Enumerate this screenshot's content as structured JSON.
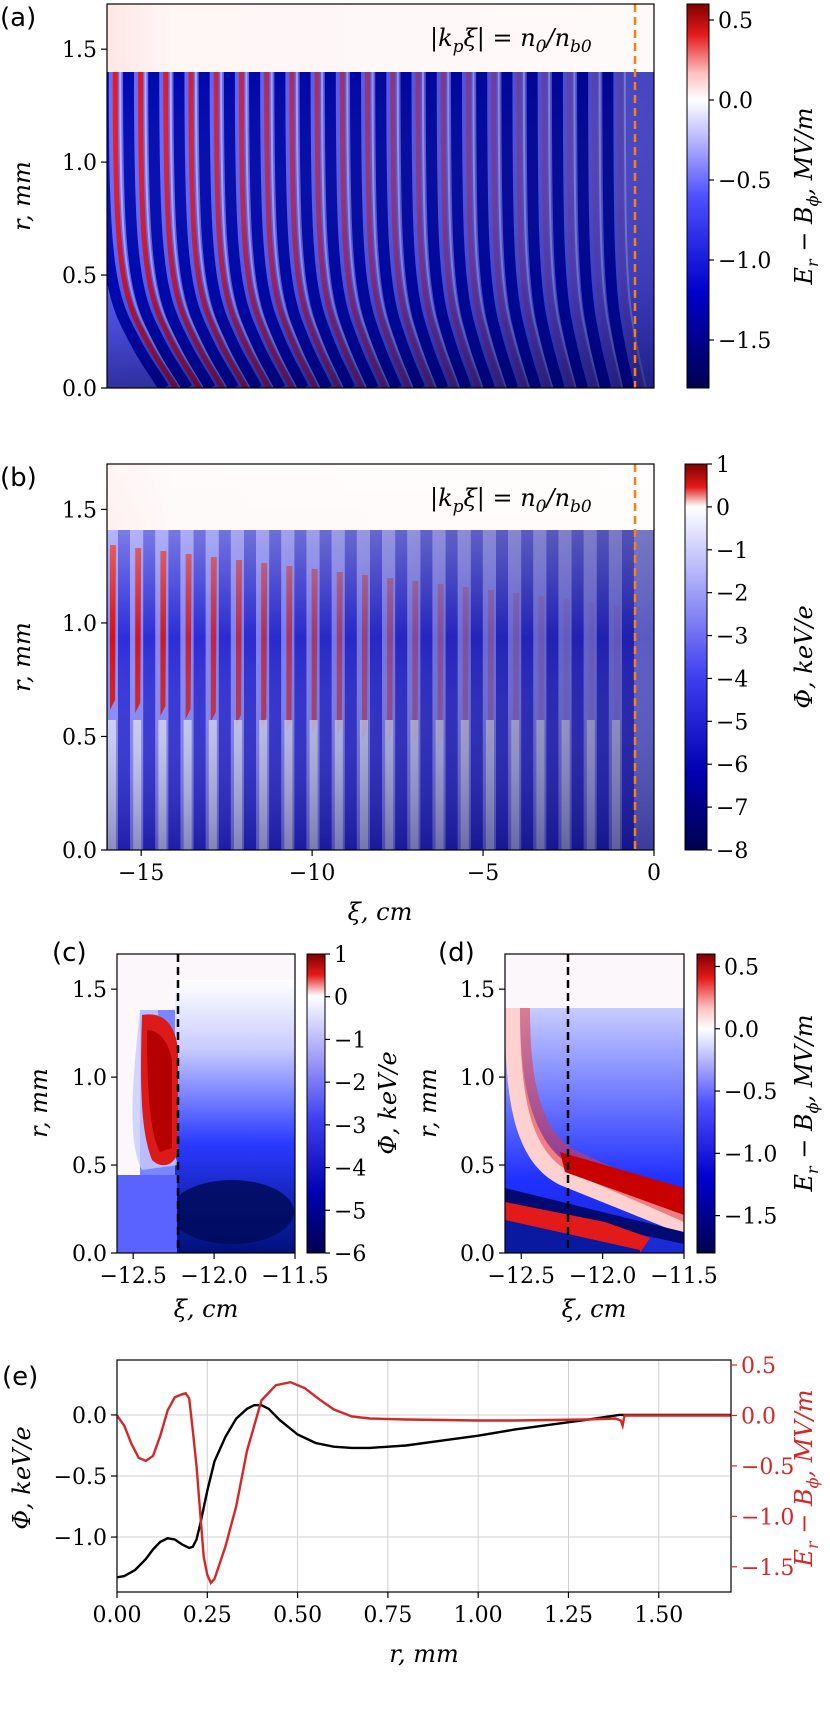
{
  "panels": {
    "a": {
      "label": "(a)",
      "annotation": "|kₚξ| = n₀/n₀₀",
      "annotation_parts": [
        "|k",
        "p",
        "ξ| = n",
        "0",
        "/n",
        "b0"
      ]
    },
    "b": {
      "label": "(b)"
    },
    "c": {
      "label": "(c)"
    },
    "d": {
      "label": "(d)"
    },
    "e": {
      "label": "(e)"
    }
  },
  "labels": {
    "r_mm": [
      "r,",
      "mm"
    ],
    "xi_cm": [
      "ξ,",
      "cm"
    ],
    "field": [
      "E",
      "r",
      " − B",
      "ϕ",
      ",",
      "MV/m"
    ],
    "phi": [
      "Φ,",
      "keV/e"
    ]
  },
  "chart_data": [
    {
      "panel": "a",
      "type": "heatmap",
      "quantity": "E_r - B_phi",
      "units": "MV/m",
      "xlim": [
        -16,
        0
      ],
      "ylim": [
        0,
        1.7
      ],
      "ylabel": "r, mm",
      "yticks": [
        "0.0",
        "0.5",
        "1.0",
        "1.5"
      ],
      "colorbar_label": "E_r − B_ϕ, MV/m",
      "colorbar_range": [
        -1.8,
        0.6
      ],
      "colorbar_ticks": [
        "0.5",
        "0.0",
        "−0.5",
        "−1.0",
        "−1.5"
      ],
      "colormap": "seismic",
      "reference_line": {
        "x": -0.5,
        "style": "dashed",
        "color": "#ff7f0e"
      },
      "plateau_radius": 1.4,
      "oscillation_count": 21
    },
    {
      "panel": "b",
      "type": "heatmap",
      "quantity": "Phi",
      "units": "keV/e",
      "xlim": [
        -16,
        0
      ],
      "ylim": [
        0,
        1.7
      ],
      "xlabel": "ξ, cm",
      "ylabel": "r, mm",
      "xticks": [
        "−15",
        "−10",
        "−5",
        "0"
      ],
      "yticks": [
        "0.0",
        "0.5",
        "1.0",
        "1.5"
      ],
      "colorbar_label": "Φ, keV/e",
      "colorbar_range": [
        -8,
        1
      ],
      "colorbar_ticks": [
        "1",
        "0",
        "−1",
        "−2",
        "−3",
        "−4",
        "−5",
        "−6",
        "−7",
        "−8"
      ],
      "colormap": "seismic",
      "reference_line": {
        "x": -0.5,
        "style": "dashed",
        "color": "#ff7f0e"
      }
    },
    {
      "panel": "c",
      "type": "heatmap",
      "quantity": "Phi",
      "units": "keV/e",
      "xlim": [
        -12.6,
        -11.5
      ],
      "ylim": [
        0,
        1.7
      ],
      "xlabel": "ξ, cm",
      "ylabel": "r, mm",
      "xticks": [
        "−12.5",
        "−12.0",
        "−11.5"
      ],
      "yticks": [
        "0.0",
        "0.5",
        "1.0",
        "1.5"
      ],
      "colorbar_label": "Φ, keV/e",
      "colorbar_range": [
        -6,
        1
      ],
      "colorbar_ticks": [
        "1",
        "0",
        "−1",
        "−2",
        "−3",
        "−4",
        "−5",
        "−6"
      ],
      "reference_line": {
        "x": -12.17,
        "style": "dashed",
        "color": "#000000"
      }
    },
    {
      "panel": "d",
      "type": "heatmap",
      "quantity": "E_r - B_phi",
      "units": "MV/m",
      "xlim": [
        -12.6,
        -11.5
      ],
      "ylim": [
        0,
        1.7
      ],
      "xlabel": "ξ, cm",
      "ylabel": "r, mm",
      "xticks": [
        "−12.5",
        "−12.0",
        "−11.5"
      ],
      "yticks": [
        "0.0",
        "0.5",
        "1.0",
        "1.5"
      ],
      "colorbar_label": "E_r − B_ϕ, MV/m",
      "colorbar_range": [
        -1.8,
        0.6
      ],
      "colorbar_ticks": [
        "0.5",
        "0.0",
        "−0.5",
        "−1.0",
        "−1.5"
      ],
      "reference_line": {
        "x": -12.17,
        "style": "dashed",
        "color": "#000000"
      }
    },
    {
      "panel": "e",
      "type": "line",
      "xlabel": "r, mm",
      "xlim": [
        0,
        1.7
      ],
      "xticks": [
        0,
        0.25,
        0.5,
        0.75,
        1.0,
        1.25,
        1.5
      ],
      "xtick_labels": [
        "0.00",
        "0.25",
        "0.50",
        "0.75",
        "1.00",
        "1.25",
        "1.50"
      ],
      "grid": true,
      "left_axis": {
        "label": "Φ, keV/e",
        "ylim": [
          -1.45,
          0.45
        ],
        "ticks": [
          0,
          -0.5,
          -1.0
        ],
        "tick_labels": [
          "0.0",
          "−0.5",
          "−1.0"
        ],
        "color": "#000000"
      },
      "right_axis": {
        "label": "E_r − B_ϕ, MV/m",
        "ylim": [
          -1.75,
          0.55
        ],
        "ticks": [
          0.5,
          0,
          -0.5,
          -1.0,
          -1.5
        ],
        "tick_labels": [
          "0.5",
          "0.0",
          "−0.5",
          "−1.0",
          "−1.5"
        ],
        "color": "#d62728"
      },
      "series": [
        {
          "axis": "left",
          "color": "#000000",
          "x": [
            0.0,
            0.02,
            0.05,
            0.08,
            0.1,
            0.12,
            0.14,
            0.16,
            0.18,
            0.2,
            0.21,
            0.22,
            0.23,
            0.25,
            0.27,
            0.3,
            0.33,
            0.36,
            0.38,
            0.4,
            0.42,
            0.45,
            0.5,
            0.55,
            0.6,
            0.65,
            0.7,
            0.8,
            0.9,
            1.0,
            1.1,
            1.2,
            1.3,
            1.39,
            1.4,
            1.41,
            1.5,
            1.6,
            1.7
          ],
          "y": [
            -1.33,
            -1.32,
            -1.27,
            -1.18,
            -1.1,
            -1.04,
            -1.01,
            -1.02,
            -1.06,
            -1.09,
            -1.08,
            -1.02,
            -0.9,
            -0.62,
            -0.38,
            -0.18,
            -0.03,
            0.05,
            0.08,
            0.08,
            0.05,
            -0.04,
            -0.16,
            -0.23,
            -0.26,
            -0.27,
            -0.27,
            -0.25,
            -0.21,
            -0.17,
            -0.12,
            -0.08,
            -0.04,
            0.0,
            0.0,
            0.0,
            0.0,
            0.0,
            0.0
          ]
        },
        {
          "axis": "right",
          "color": "#d62728",
          "x": [
            0.0,
            0.02,
            0.04,
            0.06,
            0.08,
            0.1,
            0.12,
            0.14,
            0.16,
            0.18,
            0.19,
            0.2,
            0.21,
            0.22,
            0.23,
            0.24,
            0.25,
            0.26,
            0.27,
            0.3,
            0.33,
            0.36,
            0.4,
            0.44,
            0.48,
            0.52,
            0.56,
            0.6,
            0.65,
            0.7,
            0.8,
            0.9,
            1.0,
            1.1,
            1.2,
            1.3,
            1.38,
            1.395,
            1.4,
            1.405,
            1.41,
            1.5,
            1.7
          ],
          "y": [
            0.0,
            -0.1,
            -0.28,
            -0.42,
            -0.45,
            -0.4,
            -0.2,
            0.05,
            0.18,
            0.21,
            0.22,
            0.17,
            -0.15,
            -0.5,
            -0.95,
            -1.4,
            -1.58,
            -1.66,
            -1.62,
            -1.3,
            -0.9,
            -0.35,
            0.15,
            0.3,
            0.33,
            0.27,
            0.16,
            0.06,
            -0.01,
            -0.03,
            -0.04,
            -0.045,
            -0.05,
            -0.05,
            -0.045,
            -0.04,
            -0.03,
            -0.05,
            -0.1,
            0.0,
            0.0,
            0.0,
            0.0
          ]
        }
      ]
    }
  ]
}
